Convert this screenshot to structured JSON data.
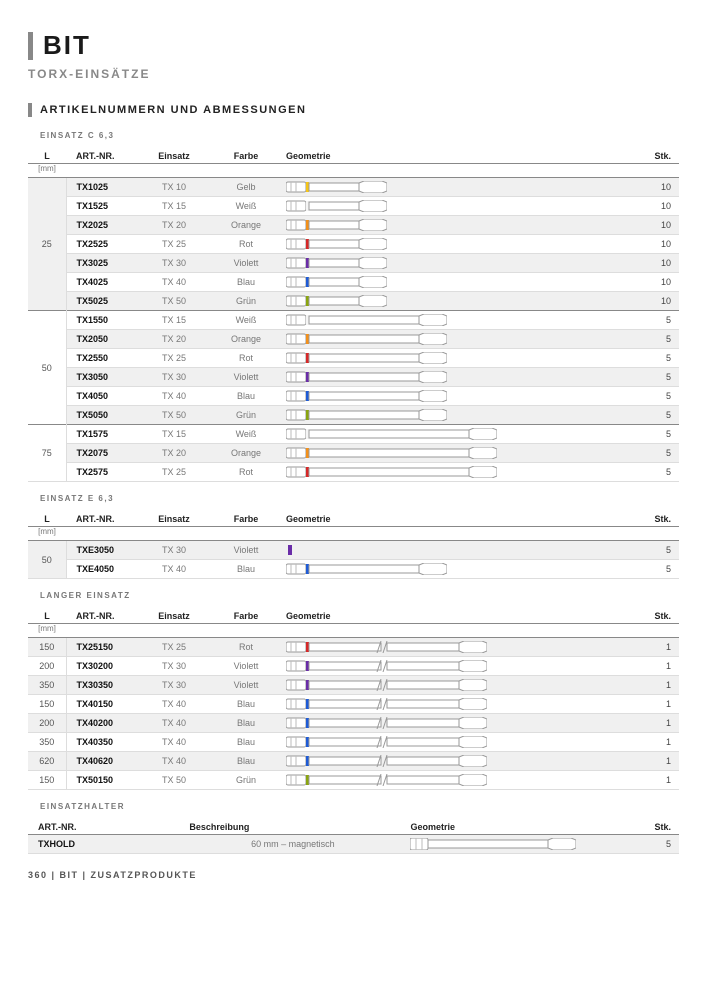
{
  "page": {
    "title": "BIT",
    "subtitle": "TORX-EINSÄTZE"
  },
  "section": "ARTIKELNUMMERN UND ABMESSUNGEN",
  "columns": {
    "L": "L",
    "L_unit": "[mm]",
    "art": "ART.-NR.",
    "einsatz": "Einsatz",
    "farbe": "Farbe",
    "geometrie": "Geometrie",
    "stk": "Stk."
  },
  "holder_columns": {
    "art": "ART.-NR.",
    "beschr": "Beschreibung",
    "geometrie": "Geometrie",
    "stk": "Stk."
  },
  "colors": {
    "Gelb": "#f5c518",
    "Weiß": "#f5f5f5",
    "Orange": "#f3901a",
    "Rot": "#d62828",
    "Violett": "#6a2da8",
    "Blau": "#1e5bd6",
    "Grün": "#8aa50f"
  },
  "tables": [
    {
      "label": "EINSATZ C 6,3",
      "groups": [
        {
          "L": 25,
          "rows": [
            {
              "art": "TX1025",
              "einsatz": "TX 10",
              "farbe": "Gelb",
              "stk": 10,
              "len": 50
            },
            {
              "art": "TX1525",
              "einsatz": "TX 15",
              "farbe": "Weiß",
              "stk": 10,
              "len": 50
            },
            {
              "art": "TX2025",
              "einsatz": "TX 20",
              "farbe": "Orange",
              "stk": 10,
              "len": 50
            },
            {
              "art": "TX2525",
              "einsatz": "TX 25",
              "farbe": "Rot",
              "stk": 10,
              "len": 50
            },
            {
              "art": "TX3025",
              "einsatz": "TX 30",
              "farbe": "Violett",
              "stk": 10,
              "len": 50
            },
            {
              "art": "TX4025",
              "einsatz": "TX 40",
              "farbe": "Blau",
              "stk": 10,
              "len": 50
            },
            {
              "art": "TX5025",
              "einsatz": "TX 50",
              "farbe": "Grün",
              "stk": 10,
              "len": 50
            }
          ]
        },
        {
          "L": 50,
          "rows": [
            {
              "art": "TX1550",
              "einsatz": "TX 15",
              "farbe": "Weiß",
              "stk": 5,
              "len": 110
            },
            {
              "art": "TX2050",
              "einsatz": "TX 20",
              "farbe": "Orange",
              "stk": 5,
              "len": 110
            },
            {
              "art": "TX2550",
              "einsatz": "TX 25",
              "farbe": "Rot",
              "stk": 5,
              "len": 110
            },
            {
              "art": "TX3050",
              "einsatz": "TX 30",
              "farbe": "Violett",
              "stk": 5,
              "len": 110
            },
            {
              "art": "TX4050",
              "einsatz": "TX 40",
              "farbe": "Blau",
              "stk": 5,
              "len": 110
            },
            {
              "art": "TX5050",
              "einsatz": "TX 50",
              "farbe": "Grün",
              "stk": 5,
              "len": 110
            }
          ]
        },
        {
          "L": 75,
          "rows": [
            {
              "art": "TX1575",
              "einsatz": "TX 15",
              "farbe": "Weiß",
              "stk": 5,
              "len": 160
            },
            {
              "art": "TX2075",
              "einsatz": "TX 20",
              "farbe": "Orange",
              "stk": 5,
              "len": 160
            },
            {
              "art": "TX2575",
              "einsatz": "TX 25",
              "farbe": "Rot",
              "stk": 5,
              "len": 160
            }
          ]
        }
      ]
    },
    {
      "label": "EINSATZ E 6,3",
      "groups": [
        {
          "L": 50,
          "rows": [
            {
              "art": "TXE3050",
              "einsatz": "TX 30",
              "farbe": "Violett",
              "stk": 5,
              "len": 0,
              "markerOnly": true
            },
            {
              "art": "TXE4050",
              "einsatz": "TX 40",
              "farbe": "Blau",
              "stk": 5,
              "len": 110
            }
          ]
        }
      ]
    },
    {
      "label": "LANGER EINSATZ",
      "groups": [
        {
          "L": 150,
          "rows": [
            {
              "art": "TX25150",
              "einsatz": "TX 25",
              "farbe": "Rot",
              "stk": 1,
              "len": 150,
              "broken": true
            }
          ],
          "inlineL": true
        },
        {
          "L": 200,
          "rows": [
            {
              "art": "TX30200",
              "einsatz": "TX 30",
              "farbe": "Violett",
              "stk": 1,
              "len": 150,
              "broken": true
            }
          ],
          "inlineL": true
        },
        {
          "L": 350,
          "rows": [
            {
              "art": "TX30350",
              "einsatz": "TX 30",
              "farbe": "Violett",
              "stk": 1,
              "len": 150,
              "broken": true
            }
          ],
          "inlineL": true
        },
        {
          "L": 150,
          "rows": [
            {
              "art": "TX40150",
              "einsatz": "TX 40",
              "farbe": "Blau",
              "stk": 1,
              "len": 150,
              "broken": true
            }
          ],
          "inlineL": true
        },
        {
          "L": 200,
          "rows": [
            {
              "art": "TX40200",
              "einsatz": "TX 40",
              "farbe": "Blau",
              "stk": 1,
              "len": 150,
              "broken": true
            }
          ],
          "inlineL": true
        },
        {
          "L": 350,
          "rows": [
            {
              "art": "TX40350",
              "einsatz": "TX 40",
              "farbe": "Blau",
              "stk": 1,
              "len": 150,
              "broken": true
            }
          ],
          "inlineL": true
        },
        {
          "L": 620,
          "rows": [
            {
              "art": "TX40620",
              "einsatz": "TX 40",
              "farbe": "Blau",
              "stk": 1,
              "len": 150,
              "broken": true
            }
          ],
          "inlineL": true
        },
        {
          "L": 150,
          "rows": [
            {
              "art": "TX50150",
              "einsatz": "TX 50",
              "farbe": "Grün",
              "stk": 1,
              "len": 150,
              "broken": true
            }
          ],
          "inlineL": true
        }
      ]
    }
  ],
  "holder": {
    "label": "EINSATZHALTER",
    "rows": [
      {
        "art": "TXHOLD",
        "beschr": "60 mm – magnetisch",
        "stk": 5,
        "len": 120
      }
    ]
  },
  "footer": "360  |  BIT  |  ZUSATZPRODUKTE"
}
